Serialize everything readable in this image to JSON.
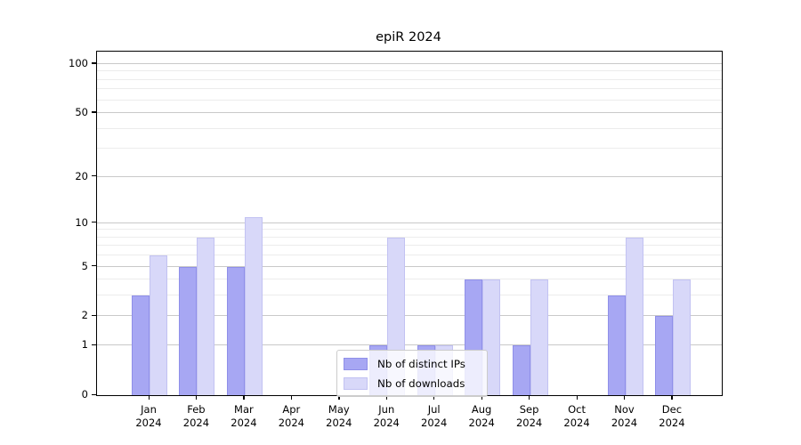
{
  "title": "epiR 2024",
  "chart_data": {
    "type": "bar",
    "title": "epiR 2024",
    "categories": [
      "Jan 2024",
      "Feb 2024",
      "Mar 2024",
      "Apr 2024",
      "May 2024",
      "Jun 2024",
      "Jul 2024",
      "Aug 2024",
      "Sep 2024",
      "Oct 2024",
      "Nov 2024",
      "Dec 2024"
    ],
    "series": [
      {
        "name": "Nb of distinct IPs",
        "values": [
          3,
          5,
          5,
          0,
          0,
          1,
          1,
          4,
          1,
          0,
          3,
          2
        ],
        "color": "#a7a7f3",
        "edge_color": "#8f8fe9"
      },
      {
        "name": "Nb of downloads",
        "values": [
          6,
          8,
          11,
          0,
          0,
          8,
          1,
          4,
          4,
          0,
          8,
          4
        ],
        "color": "#d8d8f9",
        "edge_color": "#c2c2f2"
      }
    ],
    "xlabel": "",
    "ylabel": "",
    "yscale": "log(1+y)",
    "yticks": [
      0,
      1,
      2,
      5,
      10,
      20,
      50,
      100
    ],
    "minor_yticks": [
      3,
      4,
      6,
      7,
      8,
      9,
      30,
      40,
      60,
      70,
      80,
      90
    ],
    "ylim": [
      0,
      119
    ],
    "grid": true,
    "legend_position": "lower center"
  },
  "colors": {
    "background": "#ffffff",
    "spine": "#000000",
    "grid_major": "#c9c9c9",
    "grid_minor": "#ececec",
    "legend_border": "#cccccc"
  }
}
